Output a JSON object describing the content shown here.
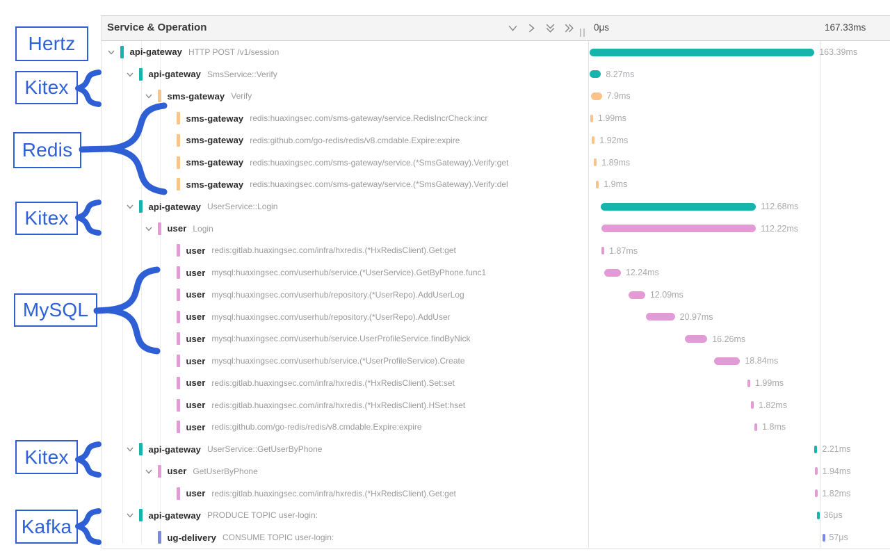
{
  "header": {
    "title": "Service & Operation",
    "icons": [
      "collapse-one-icon",
      "expand-one-icon",
      "collapse-all-icon",
      "expand-all-icon"
    ],
    "ruler_start": "0μs",
    "ruler_end": "167.33ms"
  },
  "colors": {
    "teal": "#17b3ad",
    "orange": "#f9c389",
    "pink": "#e29bd6",
    "periwinkle": "#7b89e5",
    "annotation_blue": "#2e5fd4",
    "duration_label": "#a9a9ae"
  },
  "annotations": [
    {
      "label": "Hertz"
    },
    {
      "label": "Kitex"
    },
    {
      "label": "Redis"
    },
    {
      "label": "Kitex"
    },
    {
      "label": "MySQL"
    },
    {
      "label": "Kitex"
    },
    {
      "label": "Kafka"
    }
  ],
  "rows": [
    {
      "service": "api-gateway",
      "operation": "HTTP POST /v1/session",
      "color": "teal",
      "level": 0,
      "chevron": true,
      "duration": "163.39ms",
      "start": 0,
      "width": 97.65
    },
    {
      "service": "api-gateway",
      "operation": "SmsService::Verify",
      "color": "teal",
      "level": 1,
      "chevron": true,
      "duration": "8.27ms",
      "start": 0,
      "width": 4.94
    },
    {
      "service": "sms-gateway",
      "operation": "Verify",
      "color": "orange",
      "level": 2,
      "chevron": true,
      "duration": "7.9ms",
      "start": 0.6,
      "width": 4.72
    },
    {
      "service": "sms-gateway",
      "operation": "redis:huaxingsec.com/sms-gateway/service.RedisIncrCheck:incr",
      "color": "orange",
      "level": 3,
      "chevron": false,
      "duration": "1.99ms",
      "start": 0.3,
      "width": 1.19
    },
    {
      "service": "sms-gateway",
      "operation": "redis:github.com/go-redis/redis/v8.cmdable.Expire:expire",
      "color": "orange",
      "level": 3,
      "chevron": false,
      "duration": "1.92ms",
      "start": 1.05,
      "width": 1.15
    },
    {
      "service": "sms-gateway",
      "operation": "redis:huaxingsec.com/sms-gateway/service.(*SmsGateway).Verify:get",
      "color": "orange",
      "level": 3,
      "chevron": false,
      "duration": "1.89ms",
      "start": 1.95,
      "width": 1.13
    },
    {
      "service": "sms-gateway",
      "operation": "redis:huaxingsec.com/sms-gateway/service.(*SmsGateway).Verify:del",
      "color": "orange",
      "level": 3,
      "chevron": false,
      "duration": "1.9ms",
      "start": 2.85,
      "width": 1.14
    },
    {
      "service": "api-gateway",
      "operation": "UserService::Login",
      "color": "teal",
      "level": 1,
      "chevron": true,
      "duration": "112.68ms",
      "start": 4.95,
      "width": 67.34
    },
    {
      "service": "user",
      "operation": "Login",
      "color": "pink",
      "level": 2,
      "chevron": true,
      "duration": "112.22ms",
      "start": 5.15,
      "width": 67.07
    },
    {
      "service": "user",
      "operation": "redis:gitlab.huaxingsec.com/infra/hxredis.(*HxRedisClient).Get:get",
      "color": "pink",
      "level": 3,
      "chevron": false,
      "duration": "1.87ms",
      "start": 5.25,
      "width": 1.12
    },
    {
      "service": "user",
      "operation": "mysql:huaxingsec.com/userhub/service.(*UserService).GetByPhone.func1",
      "color": "pink",
      "level": 3,
      "chevron": false,
      "duration": "12.24ms",
      "start": 6.2,
      "width": 7.32
    },
    {
      "service": "user",
      "operation": "mysql:huaxingsec.com/userhub/repository.(*UserRepo).AddUserLog",
      "color": "pink",
      "level": 3,
      "chevron": false,
      "duration": "12.09ms",
      "start": 16.9,
      "width": 7.23
    },
    {
      "service": "user",
      "operation": "mysql:huaxingsec.com/userhub/repository.(*UserRepo).AddUser",
      "color": "pink",
      "level": 3,
      "chevron": false,
      "duration": "20.97ms",
      "start": 24.5,
      "width": 12.53
    },
    {
      "service": "user",
      "operation": "mysql:huaxingsec.com/userhub/service.UserProfileService.findByNick",
      "color": "pink",
      "level": 3,
      "chevron": false,
      "duration": "16.26ms",
      "start": 41.4,
      "width": 9.72
    },
    {
      "service": "user",
      "operation": "mysql:huaxingsec.com/userhub/service.(*UserProfileService).Create",
      "color": "pink",
      "level": 3,
      "chevron": false,
      "duration": "18.84ms",
      "start": 54.1,
      "width": 11.26
    },
    {
      "service": "user",
      "operation": "redis:gitlab.huaxingsec.com/infra/hxredis.(*HxRedisClient).Set:set",
      "color": "pink",
      "level": 3,
      "chevron": false,
      "duration": "1.99ms",
      "start": 68.6,
      "width": 1.19
    },
    {
      "service": "user",
      "operation": "redis:gitlab.huaxingsec.com/infra/hxredis.(*HxRedisClient).HSet:hset",
      "color": "pink",
      "level": 3,
      "chevron": false,
      "duration": "1.82ms",
      "start": 70.2,
      "width": 1.09
    },
    {
      "service": "user",
      "operation": "redis:github.com/go-redis/redis/v8.cmdable.Expire:expire",
      "color": "pink",
      "level": 3,
      "chevron": false,
      "duration": "1.8ms",
      "start": 71.75,
      "width": 1.08
    },
    {
      "service": "api-gateway",
      "operation": "UserService::GetUserByPhone",
      "color": "teal",
      "level": 1,
      "chevron": true,
      "duration": "2.21ms",
      "start": 97.6,
      "width": 1.32
    },
    {
      "service": "user",
      "operation": "GetUserByPhone",
      "color": "pink",
      "level": 2,
      "chevron": true,
      "duration": "1.94ms",
      "start": 97.8,
      "width": 1.16
    },
    {
      "service": "user",
      "operation": "redis:gitlab.huaxingsec.com/infra/hxredis.(*HxRedisClient).Get:get",
      "color": "pink",
      "level": 3,
      "chevron": false,
      "duration": "1.82ms",
      "start": 97.8,
      "width": 1.09
    },
    {
      "service": "api-gateway",
      "operation": "PRODUCE TOPIC user-login:",
      "color": "teal",
      "level": 1,
      "chevron": true,
      "duration": "36μs",
      "start": 98.9,
      "width": 0.62
    },
    {
      "service": "ug-delivery",
      "operation": "CONSUME TOPIC user-login:",
      "color": "periwinkle",
      "level": 2,
      "chevron": false,
      "duration": "57μs",
      "start": 101.3,
      "width": 0.62
    }
  ]
}
